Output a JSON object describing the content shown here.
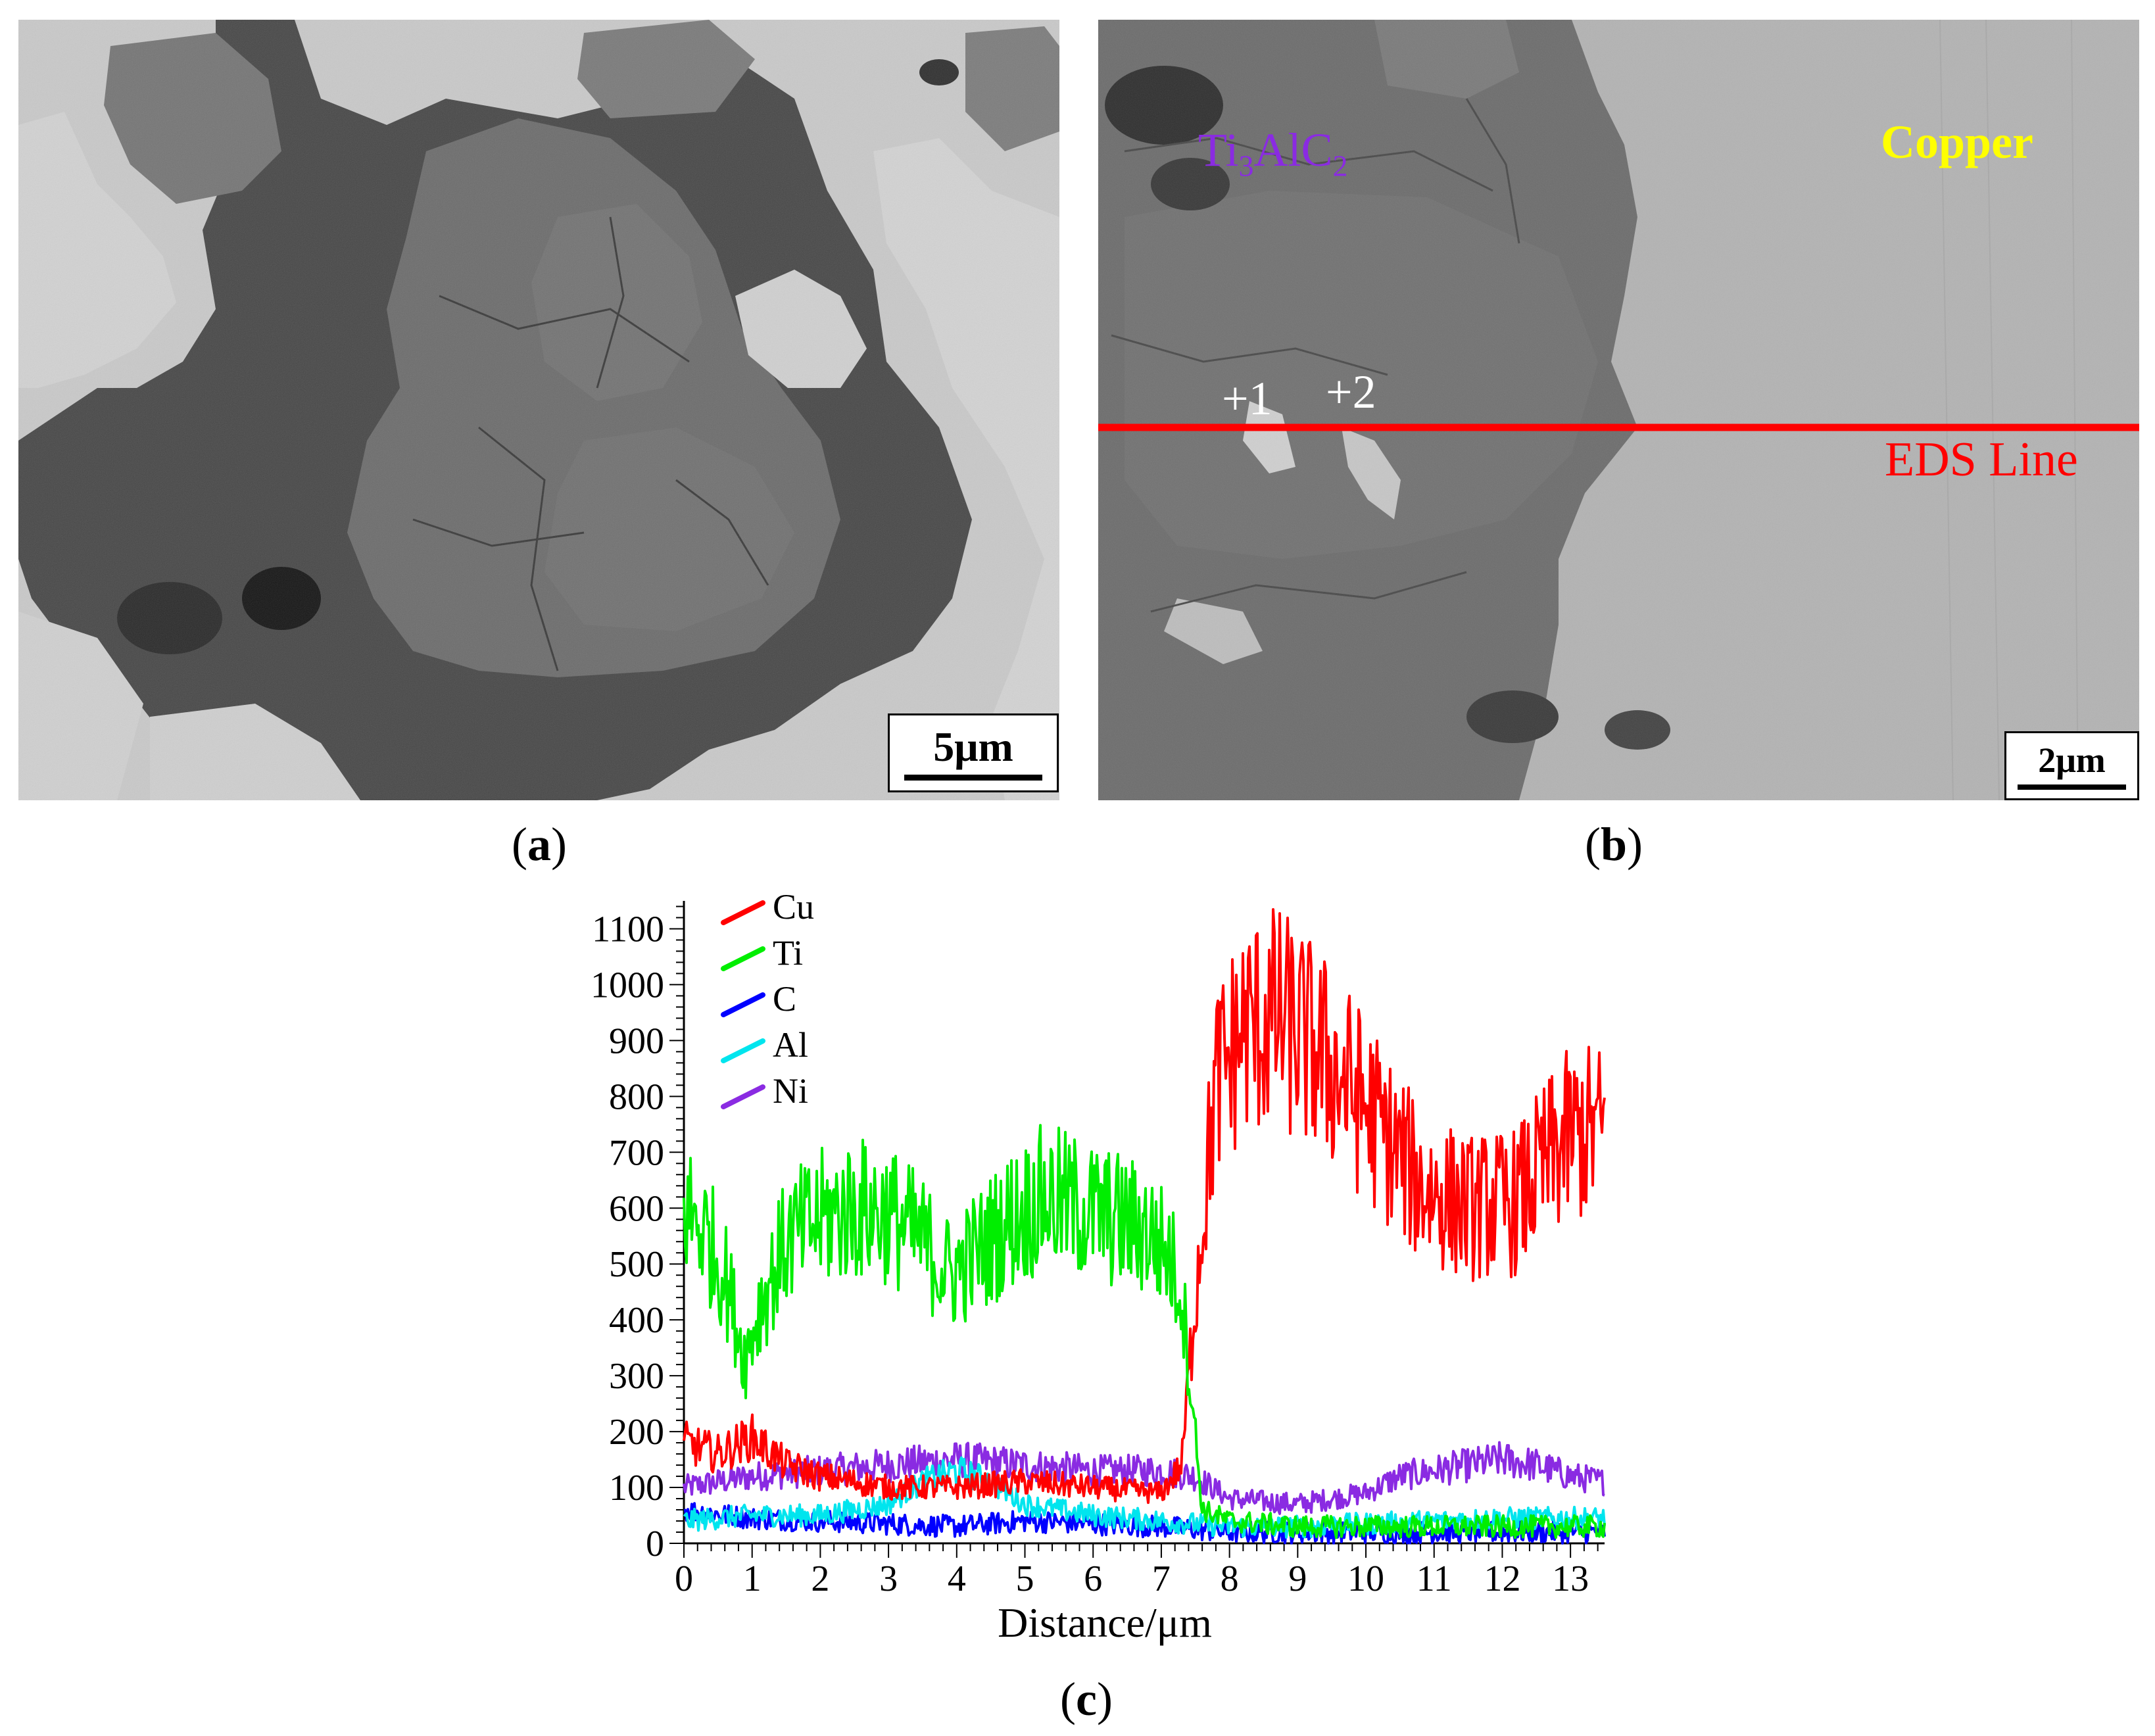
{
  "panels": {
    "a": {
      "label_open": "(",
      "label_letter": "a",
      "label_close": ")",
      "scale_bar": "5μm"
    },
    "b": {
      "label_open": "(",
      "label_letter": "b",
      "label_close": ")",
      "scale_bar": "2μm",
      "phase_label": {
        "ti": "Ti",
        "sub1": "3",
        "al": "AlC",
        "sub2": "2"
      },
      "matrix_label": "Copper",
      "line_label": "EDS Line",
      "point_1": "+1",
      "point_2": "+2",
      "colors": {
        "phase_label": "#8a2be2",
        "matrix_label": "#ffff00",
        "eds_line": "#ff0000",
        "points": "#ffffff"
      }
    },
    "c": {
      "label_open": "(",
      "label_letter": "c",
      "label_close": ")"
    }
  },
  "chart_data": {
    "type": "line",
    "xlabel": "Distance/μm",
    "ylabel": "",
    "xlim": [
      0,
      13.5
    ],
    "ylim": [
      0,
      1150
    ],
    "x_ticks": [
      0,
      1,
      2,
      3,
      4,
      5,
      6,
      7,
      8,
      9,
      10,
      11,
      12,
      13
    ],
    "y_ticks": [
      0,
      100,
      200,
      300,
      400,
      500,
      600,
      700,
      800,
      900,
      1000,
      1100
    ],
    "legend_position": "top-left",
    "grid": false,
    "series": [
      {
        "name": "Cu",
        "color": "#ff0000",
        "x": [
          0,
          0.5,
          1.0,
          1.5,
          2.0,
          3.0,
          4.0,
          5.0,
          6.0,
          7.0,
          7.3,
          7.5,
          7.8,
          8.2,
          8.7,
          9.3,
          10.0,
          10.8,
          11.5,
          12.2,
          12.7,
          13.0,
          13.5
        ],
        "values": [
          180,
          160,
          190,
          140,
          120,
          100,
          100,
          110,
          100,
          90,
          140,
          450,
          820,
          920,
          940,
          880,
          780,
          640,
          600,
          610,
          690,
          730,
          740
        ]
      },
      {
        "name": "Ti",
        "color": "#00ee00",
        "x": [
          0,
          0.3,
          0.6,
          0.9,
          1.1,
          1.5,
          2.0,
          2.5,
          3.0,
          3.5,
          3.9,
          4.3,
          4.8,
          5.3,
          5.8,
          6.3,
          6.8,
          7.1,
          7.3,
          7.45,
          7.6,
          8.0,
          9.0,
          10.0,
          11.0,
          12.0,
          13.0,
          13.5
        ],
        "values": [
          600,
          560,
          480,
          330,
          420,
          540,
          580,
          600,
          590,
          540,
          480,
          520,
          580,
          620,
          600,
          580,
          560,
          520,
          450,
          260,
          60,
          40,
          30,
          30,
          30,
          30,
          30,
          30
        ]
      },
      {
        "name": "C",
        "color": "#0000ff",
        "x": [
          0,
          1,
          2,
          3,
          4,
          5,
          6,
          7,
          7.5,
          8,
          9,
          10,
          11,
          12,
          13,
          13.5
        ],
        "values": [
          60,
          45,
          40,
          35,
          30,
          40,
          35,
          30,
          25,
          20,
          20,
          20,
          20,
          20,
          20,
          20
        ]
      },
      {
        "name": "Al",
        "color": "#00e5ee",
        "x": [
          0,
          1,
          2,
          3,
          3.5,
          4,
          4.5,
          5,
          6,
          7,
          7.5,
          8,
          9,
          10,
          11,
          12,
          13,
          13.5
        ],
        "values": [
          40,
          50,
          50,
          70,
          110,
          130,
          110,
          70,
          50,
          40,
          35,
          30,
          30,
          35,
          40,
          45,
          45,
          45
        ]
      },
      {
        "name": "Ni",
        "color": "#8a2be2",
        "x": [
          0,
          1,
          2,
          3,
          4,
          5,
          6,
          7,
          7.5,
          8,
          9,
          10,
          10.5,
          11,
          11.5,
          12,
          12.5,
          13,
          13.5
        ],
        "values": [
          100,
          120,
          130,
          140,
          150,
          140,
          130,
          130,
          120,
          80,
          70,
          90,
          120,
          130,
          140,
          150,
          140,
          120,
          110
        ]
      }
    ]
  }
}
